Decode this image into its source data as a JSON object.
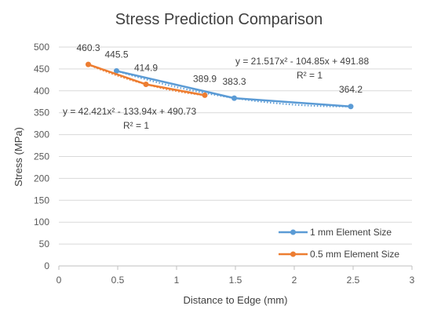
{
  "chart_data": {
    "type": "scatter",
    "title": "Stress Prediction Comparison",
    "xlabel": "Distance to Edge (mm)",
    "ylabel": "Stress (MPa)",
    "xlim": [
      0,
      3
    ],
    "ylim": [
      0,
      500
    ],
    "x_ticks": [
      "0",
      "0.5",
      "1",
      "1.5",
      "2",
      "2.5",
      "3"
    ],
    "y_ticks": [
      "0",
      "50",
      "100",
      "150",
      "200",
      "250",
      "300",
      "350",
      "400",
      "450",
      "500"
    ],
    "grid": "horizontal",
    "legend_position": "bottom-right",
    "series": [
      {
        "name": "1 mm Element Size",
        "color": "#5B9BD5",
        "x": [
          0.49,
          1.49,
          2.48
        ],
        "y": [
          445.5,
          383.3,
          364.2
        ],
        "labels": [
          "445.5",
          "383.3",
          "364.2"
        ],
        "trendline": {
          "type": "polynomial",
          "order": 2,
          "equation": "y = 21.517x² - 104.85x + 491.88",
          "r_squared": "R² = 1",
          "coefficients": [
            21.517,
            -104.85,
            491.88
          ]
        }
      },
      {
        "name": "0.5 mm Element Size",
        "color": "#ED7D31",
        "x": [
          0.25,
          0.74,
          1.24
        ],
        "y": [
          460.3,
          414.9,
          389.9
        ],
        "labels": [
          "460.3",
          "414.9",
          "389.9"
        ],
        "trendline": {
          "type": "polynomial",
          "order": 2,
          "equation": "y = 42.421x² - 133.94x + 490.73",
          "r_squared": "R² = 1",
          "coefficients": [
            42.421,
            -133.94,
            490.73
          ]
        }
      }
    ]
  }
}
